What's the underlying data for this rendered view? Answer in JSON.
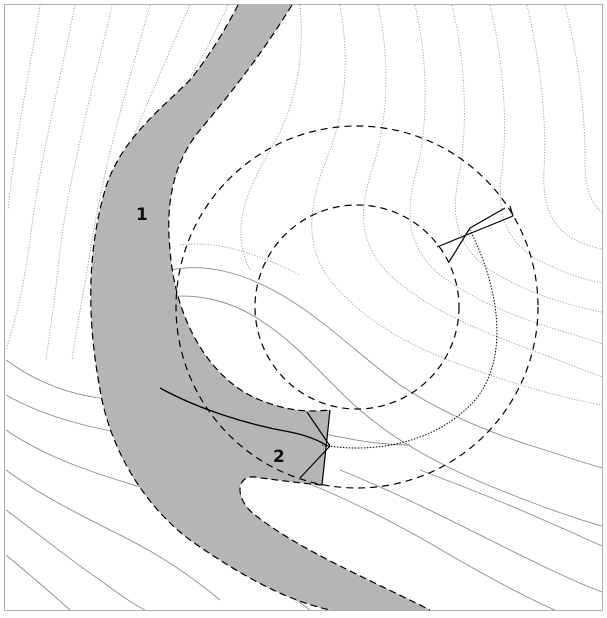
{
  "diagram": {
    "labels": {
      "label_1": "1",
      "label_2": "2"
    },
    "colors": {
      "road_fill": "#b5b5b5",
      "contour": "#9a9a9a",
      "ink": "#000000",
      "background": "#ffffff"
    }
  }
}
